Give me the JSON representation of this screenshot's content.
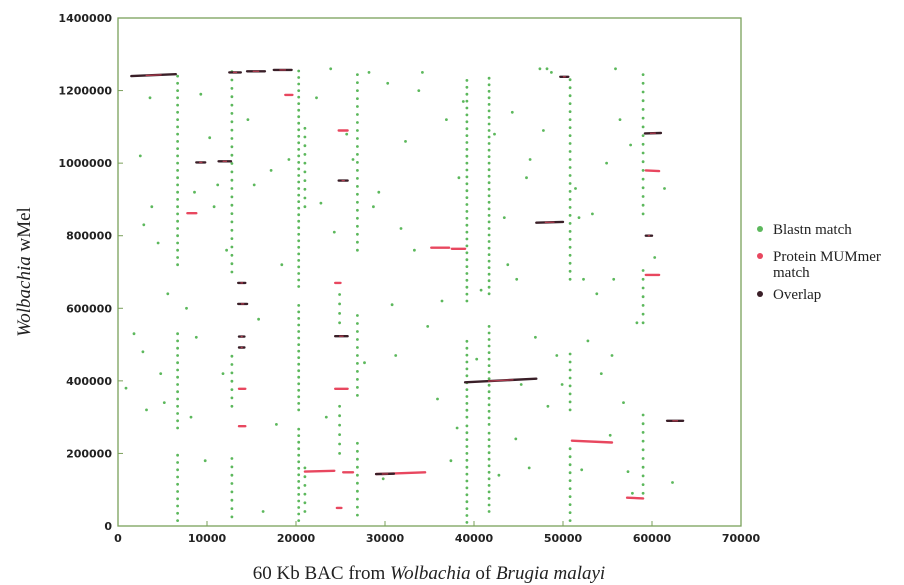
{
  "chart_data": {
    "type": "scatter",
    "title": "",
    "xlabel_parts": [
      "60 Kb BAC from ",
      "Wolbachia",
      " of ",
      "Brugia malayi"
    ],
    "ylabel_parts": [
      "Wolbachia",
      " wMel"
    ],
    "xlim": [
      0,
      70000
    ],
    "ylim": [
      0,
      1400000
    ],
    "x_ticks": [
      0,
      10000,
      20000,
      30000,
      40000,
      50000,
      60000,
      70000
    ],
    "y_ticks": [
      0,
      200000,
      400000,
      600000,
      800000,
      1000000,
      1200000,
      1400000
    ],
    "grid": false,
    "legend_position": "right",
    "colors": {
      "blastn": "#5cb85c",
      "mummer": "#e8475f",
      "overlap": "#3a1f28",
      "frame": "#7aa05a"
    },
    "series": [
      {
        "name": "Blastn match",
        "kind": "blastn"
      },
      {
        "name": "Protein MUMmer match",
        "kind": "mummer"
      },
      {
        "name": "Overlap",
        "kind": "overlap"
      }
    ],
    "legend_lines": {
      "blastn": [
        "Blastn match"
      ],
      "mummer": [
        "Protein MUMmer",
        "match"
      ],
      "overlap": [
        "Overlap"
      ]
    },
    "segments": [
      {
        "x": [
          1500,
          6500
        ],
        "y": [
          1240000,
          1245000
        ],
        "kind": "overlap"
      },
      {
        "x": [
          12500,
          13800
        ],
        "y": [
          1250000,
          1250000
        ],
        "kind": "overlap"
      },
      {
        "x": [
          14500,
          16500
        ],
        "y": [
          1253000,
          1253000
        ],
        "kind": "overlap"
      },
      {
        "x": [
          17500,
          19500
        ],
        "y": [
          1257000,
          1257000
        ],
        "kind": "overlap"
      },
      {
        "x": [
          18800,
          19600
        ],
        "y": [
          1188000,
          1188000
        ],
        "kind": "mummer"
      },
      {
        "x": [
          24800,
          25800
        ],
        "y": [
          1090000,
          1090000
        ],
        "kind": "mummer"
      },
      {
        "x": [
          8800,
          9800
        ],
        "y": [
          1002000,
          1002000
        ],
        "kind": "overlap"
      },
      {
        "x": [
          11300,
          12700
        ],
        "y": [
          1005000,
          1005000
        ],
        "kind": "overlap"
      },
      {
        "x": [
          24800,
          25800
        ],
        "y": [
          952000,
          952000
        ],
        "kind": "overlap"
      },
      {
        "x": [
          7800,
          8800
        ],
        "y": [
          862000,
          862000
        ],
        "kind": "mummer"
      },
      {
        "x": [
          13500,
          14300
        ],
        "y": [
          670000,
          670000
        ],
        "kind": "overlap"
      },
      {
        "x": [
          13500,
          14500
        ],
        "y": [
          612000,
          612000
        ],
        "kind": "overlap"
      },
      {
        "x": [
          13600,
          14200
        ],
        "y": [
          522000,
          522000
        ],
        "kind": "overlap"
      },
      {
        "x": [
          13600,
          14200
        ],
        "y": [
          492000,
          492000
        ],
        "kind": "overlap"
      },
      {
        "x": [
          13600,
          14300
        ],
        "y": [
          378000,
          378000
        ],
        "kind": "mummer"
      },
      {
        "x": [
          13600,
          14300
        ],
        "y": [
          275000,
          275000
        ],
        "kind": "mummer"
      },
      {
        "x": [
          24400,
          25800
        ],
        "y": [
          523000,
          523000
        ],
        "kind": "overlap"
      },
      {
        "x": [
          24400,
          25000
        ],
        "y": [
          670000,
          670000
        ],
        "kind": "mummer"
      },
      {
        "x": [
          24400,
          25800
        ],
        "y": [
          378000,
          378000
        ],
        "kind": "mummer"
      },
      {
        "x": [
          21000,
          24300
        ],
        "y": [
          150000,
          152000
        ],
        "kind": "mummer"
      },
      {
        "x": [
          25300,
          26400
        ],
        "y": [
          148000,
          148000
        ],
        "kind": "mummer"
      },
      {
        "x": [
          24600,
          25100
        ],
        "y": [
          50000,
          50000
        ],
        "kind": "mummer"
      },
      {
        "x": [
          29000,
          34500
        ],
        "y": [
          143000,
          148000
        ],
        "kind": "mummer"
      },
      {
        "x": [
          29000,
          31000
        ],
        "y": [
          143000,
          144000
        ],
        "kind": "overlap"
      },
      {
        "x": [
          35200,
          37200
        ],
        "y": [
          767000,
          767000
        ],
        "kind": "mummer"
      },
      {
        "x": [
          37500,
          39000
        ],
        "y": [
          764000,
          764000
        ],
        "kind": "mummer"
      },
      {
        "x": [
          39000,
          47000
        ],
        "y": [
          396000,
          406000
        ],
        "kind": "overlap"
      },
      {
        "x": [
          47000,
          50000
        ],
        "y": [
          836000,
          838000
        ],
        "kind": "overlap"
      },
      {
        "x": [
          49700,
          50600
        ],
        "y": [
          1238000,
          1238000
        ],
        "kind": "overlap"
      },
      {
        "x": [
          51000,
          55500
        ],
        "y": [
          235000,
          230000
        ],
        "kind": "mummer"
      },
      {
        "x": [
          57200,
          59000
        ],
        "y": [
          78000,
          76000
        ],
        "kind": "mummer"
      },
      {
        "x": [
          59200,
          61000
        ],
        "y": [
          1082000,
          1083000
        ],
        "kind": "overlap"
      },
      {
        "x": [
          59300,
          60800
        ],
        "y": [
          980000,
          978000
        ],
        "kind": "mummer"
      },
      {
        "x": [
          59300,
          60000
        ],
        "y": [
          800000,
          800000
        ],
        "kind": "overlap"
      },
      {
        "x": [
          59300,
          60800
        ],
        "y": [
          692000,
          692000
        ],
        "kind": "mummer"
      },
      {
        "x": [
          61700,
          63500
        ],
        "y": [
          290000,
          290000
        ],
        "kind": "overlap"
      }
    ],
    "blastn_columns": [
      {
        "x": 6700,
        "y": [
          15000,
          210000,
          270000,
          530000,
          720000,
          1255000
        ],
        "step": 20000
      },
      {
        "x": 12800,
        "y": [
          25000,
          200000,
          330000,
          480000,
          700000,
          1260000
        ],
        "step": 23000
      },
      {
        "x": 20300,
        "y": [
          15000,
          280000,
          320000,
          620000,
          660000,
          1265000
        ],
        "step": 18000
      },
      {
        "x": 21000,
        "y": [
          40000,
          160000,
          880000,
          1100000
        ],
        "step": 24000
      },
      {
        "x": 24900,
        "y": [
          200000,
          330000,
          560000,
          640000
        ],
        "step": 26000
      },
      {
        "x": 26900,
        "y": [
          30000,
          240000,
          360000,
          580000,
          760000,
          1250000
        ],
        "step": 22000
      },
      {
        "x": 39200,
        "y": [
          10000,
          280000,
          300000,
          520000,
          620000,
          1240000
        ],
        "step": 19000
      },
      {
        "x": 41700,
        "y": [
          40000,
          270000,
          280000,
          560000,
          640000,
          1250000
        ],
        "step": 18000
      },
      {
        "x": 50800,
        "y": [
          15000,
          220000,
          320000,
          480000,
          680000,
          1240000
        ],
        "step": 22000
      },
      {
        "x": 59000,
        "y": [
          90000,
          320000,
          560000,
          720000,
          860000,
          1250000
        ],
        "step": 24000
      }
    ],
    "blastn_points": [
      [
        900,
        380000
      ],
      [
        1800,
        530000
      ],
      [
        2800,
        480000
      ],
      [
        3200,
        320000
      ],
      [
        3600,
        1180000
      ],
      [
        2500,
        1020000
      ],
      [
        3800,
        880000
      ],
      [
        2900,
        830000
      ],
      [
        4500,
        780000
      ],
      [
        4800,
        420000
      ],
      [
        5200,
        340000
      ],
      [
        5600,
        640000
      ],
      [
        7700,
        600000
      ],
      [
        8200,
        300000
      ],
      [
        8800,
        520000
      ],
      [
        9300,
        1190000
      ],
      [
        9800,
        180000
      ],
      [
        10300,
        1070000
      ],
      [
        10800,
        880000
      ],
      [
        11200,
        940000
      ],
      [
        11800,
        420000
      ],
      [
        12200,
        760000
      ],
      [
        14600,
        1120000
      ],
      [
        15300,
        940000
      ],
      [
        15800,
        570000
      ],
      [
        16300,
        40000
      ],
      [
        17200,
        980000
      ],
      [
        18400,
        720000
      ],
      [
        19200,
        1010000
      ],
      [
        22300,
        1180000
      ],
      [
        22800,
        890000
      ],
      [
        23400,
        300000
      ],
      [
        23900,
        1260000
      ],
      [
        24300,
        810000
      ],
      [
        26400,
        1010000
      ],
      [
        28200,
        1250000
      ],
      [
        28700,
        880000
      ],
      [
        29300,
        920000
      ],
      [
        29800,
        130000
      ],
      [
        30300,
        1220000
      ],
      [
        31200,
        470000
      ],
      [
        32300,
        1060000
      ],
      [
        33800,
        1200000
      ],
      [
        34200,
        1250000
      ],
      [
        34800,
        550000
      ],
      [
        35900,
        350000
      ],
      [
        36400,
        620000
      ],
      [
        36900,
        1120000
      ],
      [
        37400,
        180000
      ],
      [
        38300,
        960000
      ],
      [
        38800,
        1170000
      ],
      [
        40300,
        460000
      ],
      [
        40800,
        650000
      ],
      [
        42300,
        1080000
      ],
      [
        42800,
        140000
      ],
      [
        43400,
        850000
      ],
      [
        43800,
        720000
      ],
      [
        44300,
        1140000
      ],
      [
        44800,
        680000
      ],
      [
        45300,
        390000
      ],
      [
        45900,
        960000
      ],
      [
        46300,
        1010000
      ],
      [
        46900,
        520000
      ],
      [
        47400,
        1260000
      ],
      [
        47800,
        1090000
      ],
      [
        48200,
        1260000
      ],
      [
        48700,
        1250000
      ],
      [
        49300,
        470000
      ],
      [
        49900,
        390000
      ],
      [
        51400,
        930000
      ],
      [
        52300,
        680000
      ],
      [
        52800,
        510000
      ],
      [
        53300,
        860000
      ],
      [
        53800,
        640000
      ],
      [
        54300,
        420000
      ],
      [
        54900,
        1000000
      ],
      [
        55300,
        250000
      ],
      [
        55900,
        1260000
      ],
      [
        56400,
        1120000
      ],
      [
        56800,
        340000
      ],
      [
        57300,
        150000
      ],
      [
        57800,
        90000
      ],
      [
        58300,
        560000
      ],
      [
        60300,
        740000
      ],
      [
        61400,
        930000
      ],
      [
        62300,
        120000
      ],
      [
        48300,
        330000
      ],
      [
        46200,
        160000
      ],
      [
        55500,
        470000
      ],
      [
        51800,
        850000
      ],
      [
        52100,
        155000
      ],
      [
        55700,
        680000
      ],
      [
        57600,
        1050000
      ],
      [
        27700,
        450000
      ],
      [
        38100,
        270000
      ],
      [
        44700,
        240000
      ],
      [
        33300,
        760000
      ],
      [
        30800,
        610000
      ],
      [
        31800,
        820000
      ],
      [
        25700,
        1080000
      ],
      [
        17800,
        280000
      ],
      [
        8600,
        920000
      ]
    ]
  }
}
